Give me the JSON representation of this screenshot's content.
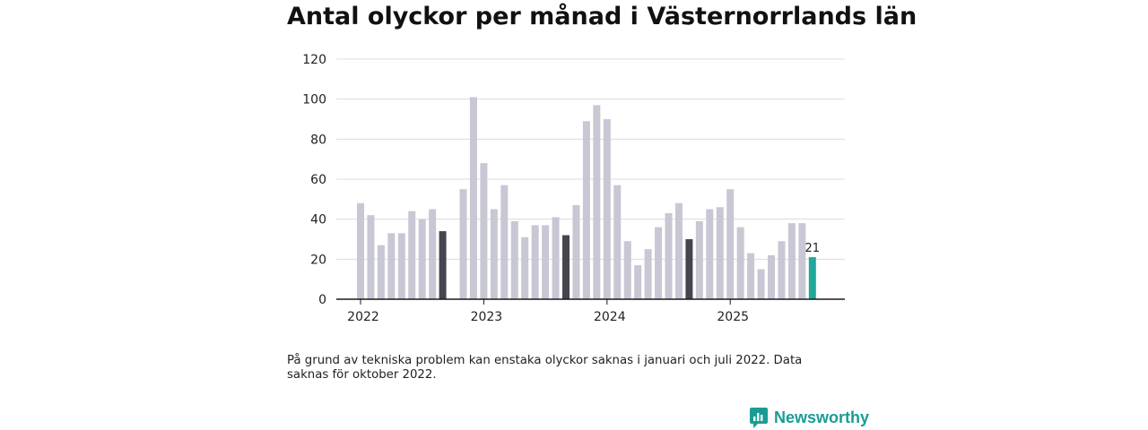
{
  "title": "Antal olyckor per månad i Västernorrlands län",
  "footnote": "På grund av tekniska problem kan enstaka olyckor saknas i januari och juli 2022. Data saknas för oktober 2022.",
  "brand": {
    "name": "Newsworthy",
    "icon": "newsworthy-bar-chart-icon"
  },
  "colors": {
    "default_bar": "#c8c7d4",
    "september_bar": "#46454f",
    "latest_bar": "#1fa899",
    "grid": "#dcdcdc",
    "axis": "#1a1a1a"
  },
  "chart_data": {
    "type": "bar",
    "title": "Antal olyckor per månad i Västernorrlands län",
    "xlabel": "",
    "ylabel": "",
    "ylim": [
      0,
      120
    ],
    "yticks": [
      0,
      20,
      40,
      60,
      80,
      100,
      120
    ],
    "x_tick_labels": [
      "2022",
      "2023",
      "2024",
      "2025"
    ],
    "highlight_label": "21",
    "categories": [
      "2022-01",
      "2022-02",
      "2022-03",
      "2022-04",
      "2022-05",
      "2022-06",
      "2022-07",
      "2022-08",
      "2022-09",
      "2022-10",
      "2022-11",
      "2022-12",
      "2023-01",
      "2023-02",
      "2023-03",
      "2023-04",
      "2023-05",
      "2023-06",
      "2023-07",
      "2023-08",
      "2023-09",
      "2023-10",
      "2023-11",
      "2023-12",
      "2024-01",
      "2024-02",
      "2024-03",
      "2024-04",
      "2024-05",
      "2024-06",
      "2024-07",
      "2024-08",
      "2024-09",
      "2024-10",
      "2024-11",
      "2024-12",
      "2025-01",
      "2025-02",
      "2025-03",
      "2025-04",
      "2025-05",
      "2025-06",
      "2025-07",
      "2025-08",
      "2025-09"
    ],
    "values": [
      48,
      42,
      27,
      33,
      33,
      44,
      40,
      45,
      34,
      null,
      55,
      101,
      68,
      45,
      57,
      39,
      31,
      37,
      37,
      41,
      32,
      47,
      89,
      97,
      90,
      57,
      29,
      17,
      25,
      36,
      43,
      48,
      30,
      39,
      45,
      46,
      55,
      36,
      23,
      15,
      22,
      29,
      38,
      38,
      21
    ],
    "bar_category": [
      "default",
      "default",
      "default",
      "default",
      "default",
      "default",
      "default",
      "default",
      "september",
      "missing",
      "default",
      "default",
      "default",
      "default",
      "default",
      "default",
      "default",
      "default",
      "default",
      "default",
      "september",
      "default",
      "default",
      "default",
      "default",
      "default",
      "default",
      "default",
      "default",
      "default",
      "default",
      "default",
      "september",
      "default",
      "default",
      "default",
      "default",
      "default",
      "default",
      "default",
      "default",
      "default",
      "default",
      "default",
      "latest"
    ]
  }
}
